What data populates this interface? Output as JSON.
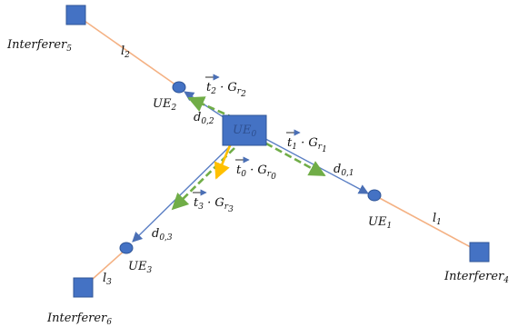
{
  "nodes": {
    "ue0": {
      "label": "UE",
      "sub": "0"
    },
    "ue1": {
      "label": "UE",
      "sub": "1"
    },
    "ue2": {
      "label": "UE",
      "sub": "2"
    },
    "ue3": {
      "label": "UE",
      "sub": "3"
    },
    "interferer4": {
      "label": "Interferer",
      "sub": "4"
    },
    "interferer5": {
      "label": "Interferer",
      "sub": "5"
    },
    "interferer6": {
      "label": "Interferer",
      "sub": "6"
    }
  },
  "links": {
    "l1": {
      "label": "l",
      "sub": "1"
    },
    "l2": {
      "label": "l",
      "sub": "2"
    },
    "l3": {
      "label": "l",
      "sub": "3"
    },
    "d01": {
      "label": "d",
      "sub": "0,1"
    },
    "d02": {
      "label": "d",
      "sub": "0,2"
    },
    "d03": {
      "label": "d",
      "sub": "0,3"
    }
  },
  "vectors": {
    "t0": {
      "vec": "t",
      "vsub": "0",
      "dot": "·",
      "gain": "G",
      "gsub": "r",
      "gsub2": "0"
    },
    "t1": {
      "vec": "t",
      "vsub": "1",
      "dot": "·",
      "gain": "G",
      "gsub": "r",
      "gsub2": "1"
    },
    "t2": {
      "vec": "t",
      "vsub": "2",
      "dot": "·",
      "gain": "G",
      "gsub": "r",
      "gsub2": "2"
    },
    "t3": {
      "vec": "t",
      "vsub": "3",
      "dot": "·",
      "gain": "G",
      "gsub": "r",
      "gsub2": "3"
    }
  },
  "colors": {
    "node_fill": "#4472c4",
    "node_stroke": "#2f5597",
    "interferer_line": "#f4b183",
    "ue_link": "#5b7fc4",
    "green_vector": "#70ad47",
    "yellow_vector": "#ffc000"
  }
}
